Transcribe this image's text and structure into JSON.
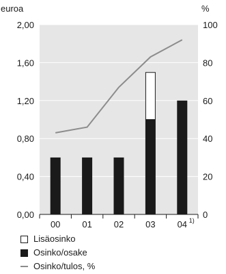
{
  "chart_data": {
    "type": "bar",
    "left_axis_unit": "euroa",
    "right_axis_unit": "%",
    "categories": [
      "00",
      "01",
      "02",
      "03",
      "04"
    ],
    "category_footnote": "1)",
    "left_ylim": [
      0,
      2
    ],
    "left_ticks": [
      "2,00",
      "1,60",
      "1,20",
      "0,80",
      "0,40",
      "0,00"
    ],
    "right_ylim": [
      0,
      100
    ],
    "right_ticks": [
      "100",
      "80",
      "60",
      "40",
      "20",
      "0"
    ],
    "series": [
      {
        "name": "Lisäosinko",
        "kind": "bar-stack",
        "color": "#ffffff",
        "values": [
          0,
          0,
          0,
          0.5,
          0
        ]
      },
      {
        "name": "Osinko/osake",
        "kind": "bar",
        "color": "#1a1a1a",
        "values": [
          0.6,
          0.6,
          0.6,
          1.0,
          1.2
        ]
      },
      {
        "name": "Osinko/tulos, %",
        "kind": "line",
        "axis": "right",
        "color": "#8c8c8c",
        "values": [
          43,
          46,
          67,
          83,
          92
        ]
      }
    ],
    "plot_background": "#e6e6e6",
    "legend_placement": "bottom-left"
  },
  "legend": {
    "items": [
      "Lisäosinko",
      "Osinko/osake",
      "Osinko/tulos, %"
    ]
  }
}
